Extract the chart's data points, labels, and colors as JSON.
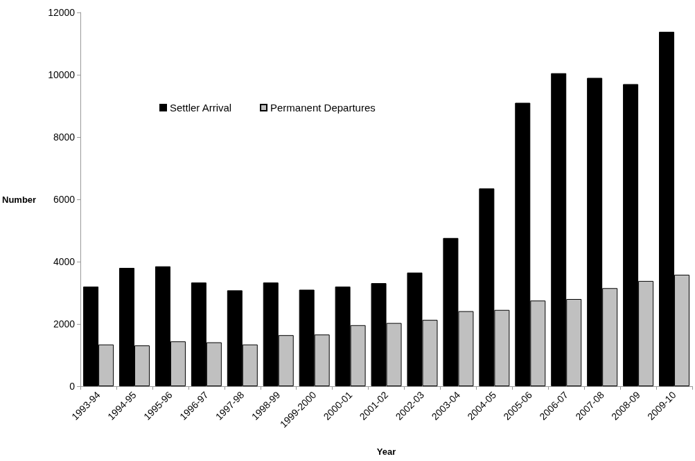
{
  "chart_data": {
    "type": "bar",
    "xlabel": "Year",
    "ylabel": "Number",
    "categories": [
      "1993-94",
      "1994-95",
      "1995-96",
      "1996-97",
      "1997-98",
      "1998-99",
      "1999-2000",
      "2000-01",
      "2001-02",
      "2002-03",
      "2003-04",
      "2004-05",
      "2005-06",
      "2006-07",
      "2007-08",
      "2008-09",
      "2009-10"
    ],
    "series": [
      {
        "name": "Settler Arrival",
        "color": "#000000",
        "values": [
          3200,
          3800,
          3850,
          3330,
          3080,
          3330,
          3100,
          3200,
          3310,
          3650,
          4760,
          6350,
          9100,
          10050,
          9900,
          9700,
          11380
        ]
      },
      {
        "name": "Permanent Departures",
        "color": "#c0c0c0",
        "values": [
          1340,
          1310,
          1440,
          1410,
          1340,
          1640,
          1660,
          1960,
          2030,
          2130,
          2410,
          2450,
          2750,
          2800,
          3150,
          3380,
          3580
        ]
      }
    ],
    "ylim": [
      0,
      12000
    ],
    "yticks": [
      0,
      2000,
      4000,
      6000,
      8000,
      10000,
      12000
    ],
    "grid": false,
    "legend": "top left"
  }
}
